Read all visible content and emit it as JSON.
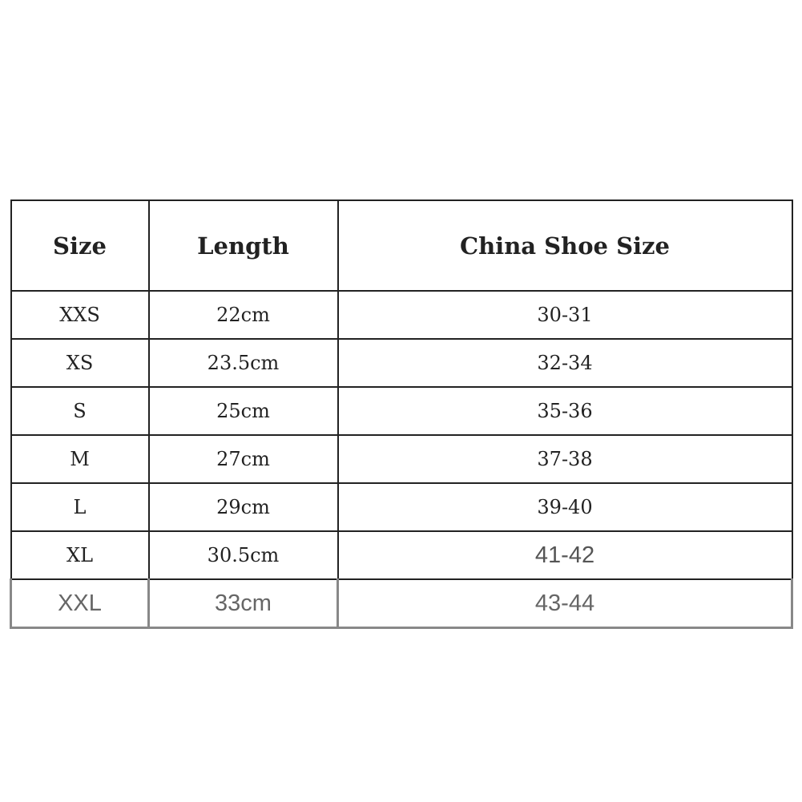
{
  "table": {
    "headers": [
      "Size",
      "Length",
      "China Shoe Size"
    ],
    "rows": [
      [
        "XXS",
        "22cm",
        "30-31"
      ],
      [
        "XS",
        "23.5cm",
        "32-34"
      ],
      [
        "S",
        "25cm",
        "35-36"
      ],
      [
        "M",
        "27cm",
        "37-38"
      ],
      [
        "L",
        "29cm",
        "39-40"
      ],
      [
        "XL",
        "30.5cm",
        "41-42"
      ],
      [
        "XXL",
        "33cm",
        "43-44"
      ]
    ]
  }
}
